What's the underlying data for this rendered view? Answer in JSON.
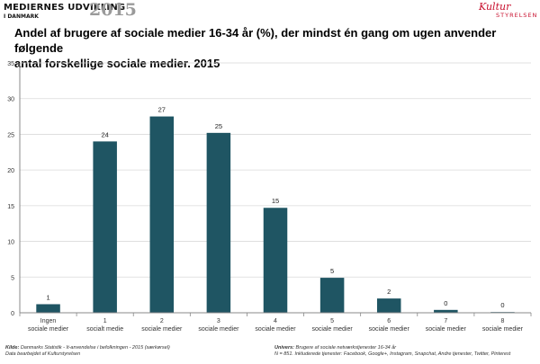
{
  "header": {
    "logo_line1": "MEDIERNES UDVIKLING",
    "logo_line2": "I DANMARK",
    "logo_year": "2015",
    "partner_logo_script": "Kultur",
    "partner_logo_sub": "STYRELSEN"
  },
  "colors": {
    "bar": "#1f5563",
    "grid": "#d9d9d9",
    "axis": "#888888",
    "partner_logo": "#c8102e"
  },
  "chart_data": {
    "type": "bar",
    "title": "Andel af brugere af sociale medier 16-34 år (%), der mindst én gang om ugen anvender følgende antal forskellige sociale medier. 2015",
    "title_lines": [
      "Andel af brugere af sociale medier 16-34 år (%), der mindst én gang om ugen anvender følgende",
      "antal forskellige sociale medier. 2015"
    ],
    "categories": [
      [
        "Ingen",
        "sociale medier"
      ],
      [
        "1",
        "socialt medie"
      ],
      [
        "2",
        "sociale medier"
      ],
      [
        "3",
        "sociale medier"
      ],
      [
        "4",
        "sociale medier"
      ],
      [
        "5",
        "sociale medier"
      ],
      [
        "6",
        "sociale medier"
      ],
      [
        "7",
        "sociale medier"
      ],
      [
        "8",
        "sociale medier"
      ]
    ],
    "values": [
      1.2,
      24,
      27.5,
      25.2,
      14.7,
      4.9,
      2,
      0.4,
      0.1
    ],
    "data_labels": [
      "1",
      "24",
      "27",
      "25",
      "15",
      "5",
      "2",
      "0",
      "0"
    ],
    "ylim": [
      0,
      35
    ],
    "yticks": [
      0,
      5,
      10,
      15,
      20,
      25,
      30,
      35
    ],
    "grid": true,
    "legend": "none",
    "xlabel": "",
    "ylabel": ""
  },
  "footer": {
    "source_label": "Kilde:",
    "source_text": "Danmarks Statistik - It-anvendelse i befolkningen - 2015 (særkørsel)",
    "processed_text": "Data bearbejdet af  Kulturstyrelsen",
    "universe_label": "Univers:",
    "universe_text": "Brugere af sociale netværkstjenester 16-34 år",
    "n_text": "N = 851. Inkluderede tjenester: Facebook, Google+, Instagram, Snapchat, Andre tjenester, Twitter, Pinterest"
  }
}
